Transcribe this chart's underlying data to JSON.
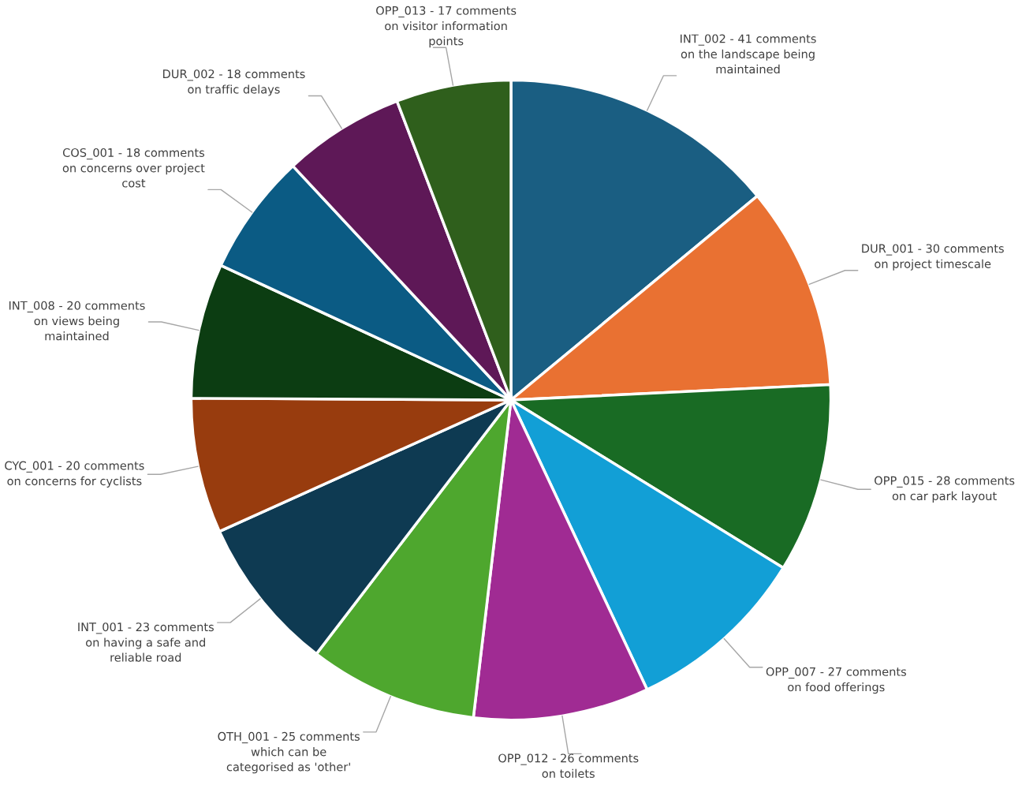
{
  "chart_data": {
    "type": "pie",
    "categories": [
      "INT_002 -",
      "DUR_001 -",
      "OPP_015 -",
      "OPP_007 -",
      "OPP_012 -",
      "OTH_001 -",
      "INT_001 -",
      "CYC_001 -",
      "INT_008 -",
      "COS_001 -",
      "DUR_002 -",
      "OPP_013 -"
    ],
    "value_labels": [
      "41 comments\non the landscape being\nmaintained",
      "30 comments\non project timescale",
      "28 comments\non car park layout",
      "27 comments\non food offerings",
      "26 comments\non toilets",
      "25 comments\nwhich can be\ncategorised as 'other'",
      "23 comments\non having a safe and\nreliable road",
      "20 comments\non concerns for cyclists",
      "20 comments\non views being\nmaintained",
      "18 comments\non concerns over project\ncost",
      "18 comments\non traffic delays",
      "17 comments\non visitor information\npoints"
    ],
    "values": [
      41,
      30,
      28,
      27,
      26,
      25,
      23,
      20,
      20,
      18,
      18,
      17
    ],
    "colors": [
      "#1a5e82",
      "#e97132",
      "#196b24",
      "#129fd6",
      "#a02b93",
      "#4ea72e",
      "#0e3a52",
      "#983c0e",
      "#0c3d12",
      "#0b5b84",
      "#5e1857",
      "#2f5f1c"
    ]
  }
}
